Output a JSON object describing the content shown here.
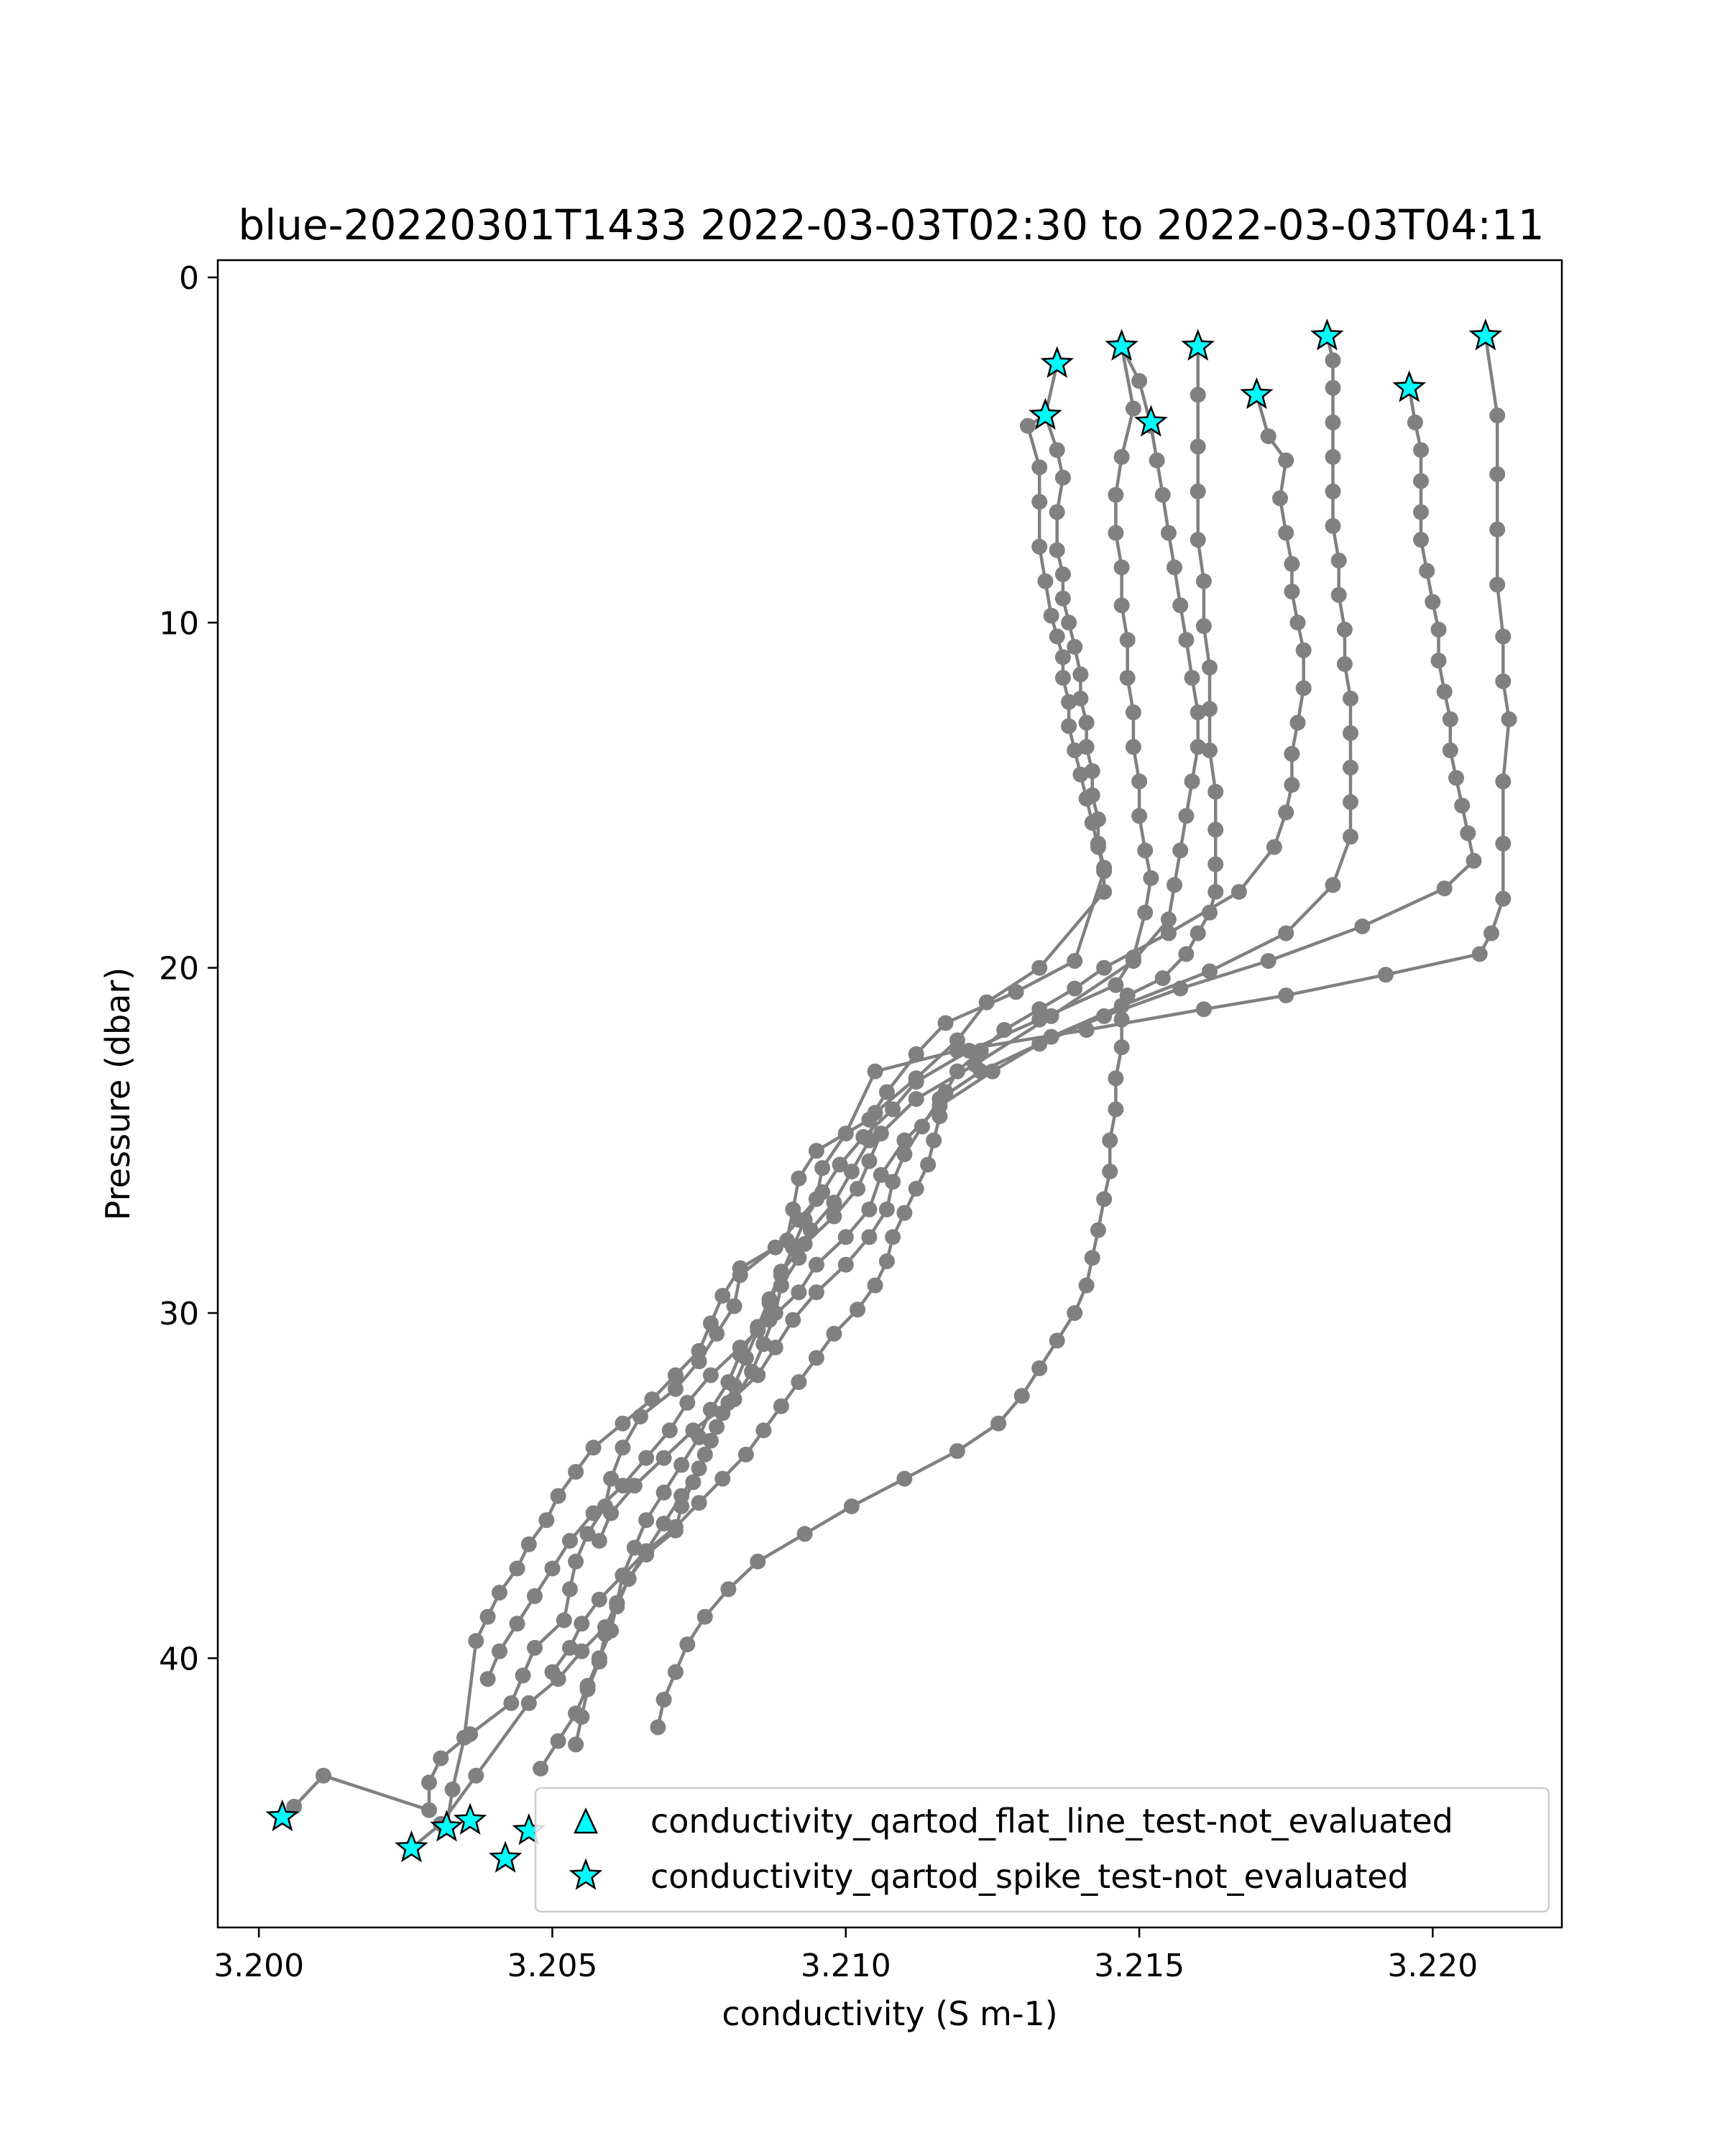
{
  "chart_data": {
    "type": "line",
    "title": "blue-20220301T1433 2022-03-03T02:30 to 2022-03-03T04:11",
    "xlabel": "conductivity (S m-1)",
    "ylabel": "Pressure (dbar)",
    "xlim": [
      3.1993,
      3.2222
    ],
    "ylim": [
      47.8,
      -0.5
    ],
    "y_inverted": true,
    "grid": false,
    "xticks": [
      3.2,
      3.205,
      3.21,
      3.215,
      3.22
    ],
    "xtick_labels": [
      "3.200",
      "3.205",
      "3.210",
      "3.215",
      "3.220"
    ],
    "yticks": [
      0,
      10,
      20,
      30,
      40
    ],
    "ytick_labels": [
      "0",
      "10",
      "20",
      "30",
      "40"
    ],
    "colors": {
      "line": "#808080",
      "marker": "#808080",
      "flag_fill": "#00ffff",
      "flag_edge": "#000000"
    },
    "legend": {
      "placement": "lower-right",
      "entries": [
        {
          "label": "conductivity_qartod_flat_line_test-not_evaluated",
          "marker": "triangle"
        },
        {
          "label": "conductivity_qartod_spike_test-not_evaluated",
          "marker": "star"
        }
      ]
    },
    "series": [
      {
        "x": [
          3.2136,
          3.2134,
          3.2136,
          3.2137,
          3.2136,
          3.2136,
          3.2137,
          3.2137,
          3.2138,
          3.2139,
          3.214,
          3.214,
          3.2141,
          3.2141,
          3.2142,
          3.2142,
          3.2143,
          3.2143,
          3.2144,
          3.2144,
          3.2133,
          3.2124,
          3.2119,
          3.2112,
          3.2105,
          3.2104,
          3.2101,
          3.2098,
          3.2094,
          3.2092,
          3.2089,
          3.2088,
          3.2086,
          3.2084,
          3.2081,
          3.2078,
          3.2076,
          3.2074,
          3.2072,
          3.2071,
          3.2066,
          3.2063,
          3.2061,
          3.2059,
          3.2055,
          3.2051,
          3.2046,
          3.2037,
          3.2031,
          3.2026
        ],
        "y": [
          2.5,
          4.0,
          5.0,
          5.8,
          6.8,
          7.9,
          8.6,
          9.3,
          10.0,
          10.7,
          11.5,
          12.2,
          12.9,
          13.6,
          14.3,
          15.0,
          15.7,
          16.4,
          17.1,
          17.8,
          20.0,
          21.0,
          22.1,
          23.2,
          24.2,
          25.0,
          25.9,
          26.8,
          27.6,
          28.4,
          29.2,
          30.0,
          30.9,
          31.7,
          32.5,
          33.3,
          34.1,
          34.9,
          35.6,
          36.3,
          37.0,
          37.7,
          38.4,
          39.1,
          39.8,
          40.6,
          41.3,
          43.4,
          44.8,
          45.5
        ]
      },
      {
        "x": [
          3.2134,
          3.2131,
          3.2133,
          3.2133,
          3.2133,
          3.2134,
          3.2135,
          3.2136,
          3.2137,
          3.2137,
          3.2138,
          3.2138,
          3.2139,
          3.214,
          3.2141,
          3.2142,
          3.2143,
          3.2144,
          3.2139,
          3.2129,
          3.2117,
          3.2112,
          3.2107,
          3.2104,
          3.2095,
          3.2092,
          3.2091,
          3.209,
          3.2082,
          3.2079,
          3.2077,
          3.2075,
          3.2071,
          3.2067,
          3.2062,
          3.2057,
          3.2054,
          3.2051,
          3.2049,
          3.2046,
          3.2044,
          3.2041,
          3.2039,
          3.2037,
          3.2035,
          3.2033,
          3.2032
        ],
        "y": [
          4.0,
          4.3,
          5.5,
          6.5,
          7.8,
          8.8,
          9.8,
          10.4,
          11.0,
          11.6,
          12.3,
          13.0,
          13.7,
          14.4,
          15.1,
          15.8,
          16.5,
          17.2,
          19.8,
          20.7,
          21.6,
          22.5,
          23.6,
          24.4,
          25.3,
          26.1,
          27.0,
          27.9,
          28.7,
          29.5,
          30.3,
          31.1,
          31.8,
          32.5,
          33.2,
          33.9,
          34.6,
          35.3,
          36.0,
          36.7,
          37.4,
          38.1,
          38.8,
          39.5,
          42.3,
          43.8,
          44.9
        ]
      },
      {
        "x": [
          3.2147,
          3.215,
          3.2152,
          3.2153,
          3.2154,
          3.2155,
          3.2156,
          3.2157,
          3.2158,
          3.2159,
          3.216,
          3.216,
          3.2159,
          3.2158,
          3.2157,
          3.2156,
          3.2155,
          3.2149,
          3.2135,
          3.2122,
          3.2112,
          3.2106,
          3.2104,
          3.2102,
          3.2098,
          3.2093,
          3.2089,
          3.2087,
          3.2085,
          3.2082,
          3.208,
          3.2077,
          3.2075,
          3.2072,
          3.2069,
          3.2066,
          3.2064,
          3.2062,
          3.2061,
          3.206,
          3.2058,
          3.2056,
          3.2054,
          3.2051,
          3.2048
        ],
        "y": [
          2.0,
          3.0,
          4.3,
          5.3,
          6.3,
          7.4,
          8.4,
          9.5,
          10.5,
          11.6,
          12.6,
          13.6,
          14.6,
          15.6,
          16.6,
          17.6,
          18.6,
          19.8,
          21.4,
          22.8,
          23.8,
          24.8,
          25.6,
          26.4,
          27.2,
          28.0,
          28.8,
          29.6,
          30.4,
          31.2,
          32.0,
          32.8,
          33.6,
          34.4,
          35.2,
          36.0,
          36.8,
          37.6,
          38.4,
          39.2,
          40.0,
          40.8,
          41.6,
          42.4,
          43.2
        ]
      },
      {
        "x": [
          3.2147,
          3.2149,
          3.2147,
          3.2146,
          3.2146,
          3.2147,
          3.2147,
          3.2148,
          3.2148,
          3.2149,
          3.2149,
          3.215,
          3.215,
          3.2151,
          3.2152,
          3.2151,
          3.2149,
          3.2146,
          3.2133,
          3.2121,
          3.2112,
          3.2108,
          3.2103,
          3.2099,
          3.2096,
          3.2093,
          3.2091,
          3.2089,
          3.2087,
          3.2085,
          3.2083,
          3.2081,
          3.2079,
          3.2077,
          3.2075,
          3.2072,
          3.2069,
          3.2066,
          3.2063,
          3.2061,
          3.2059,
          3.2058,
          3.2056,
          3.2055,
          3.2054
        ],
        "y": [
          2.0,
          3.8,
          5.2,
          6.3,
          7.4,
          8.4,
          9.5,
          10.5,
          11.6,
          12.6,
          13.6,
          14.6,
          15.6,
          16.6,
          17.4,
          18.4,
          19.7,
          20.5,
          21.5,
          22.4,
          23.3,
          24.1,
          24.9,
          25.7,
          26.5,
          27.3,
          28.1,
          28.9,
          29.7,
          30.5,
          31.3,
          32.1,
          32.9,
          33.7,
          34.5,
          35.3,
          36.1,
          36.9,
          37.7,
          38.5,
          39.3,
          40.1,
          40.9,
          41.7,
          42.5
        ]
      },
      {
        "x": [
          3.216,
          3.216,
          3.216,
          3.216,
          3.216,
          3.2161,
          3.2161,
          3.2162,
          3.2162,
          3.2162,
          3.2163,
          3.2163,
          3.2163,
          3.2163,
          3.2162,
          3.216,
          3.2158,
          3.2154,
          3.2148,
          3.2147,
          3.2147,
          3.2146,
          3.2146,
          3.2145,
          3.2145,
          3.2144,
          3.2143,
          3.2142,
          3.2141,
          3.2139,
          3.2136,
          3.2133,
          3.213,
          3.2126,
          3.2119,
          3.211,
          3.2101,
          3.2093,
          3.2085,
          3.208,
          3.2076,
          3.2073,
          3.2071,
          3.2069,
          3.2068
        ],
        "y": [
          2.0,
          3.4,
          4.9,
          6.2,
          7.6,
          8.8,
          10.1,
          11.3,
          12.5,
          13.7,
          14.9,
          16.0,
          17.0,
          17.8,
          18.4,
          19.0,
          19.6,
          20.3,
          20.8,
          21.5,
          22.3,
          23.2,
          24.1,
          25.0,
          25.9,
          26.7,
          27.6,
          28.4,
          29.2,
          30.0,
          30.8,
          31.6,
          32.4,
          33.2,
          34.0,
          34.8,
          35.6,
          36.4,
          37.2,
          38.0,
          38.8,
          39.6,
          40.4,
          41.2,
          42.0
        ]
      },
      {
        "x": [
          3.217,
          3.2172,
          3.2175,
          3.2174,
          3.2175,
          3.2176,
          3.2176,
          3.2177,
          3.2178,
          3.2178,
          3.2177,
          3.2176,
          3.2176,
          3.2175,
          3.2173,
          3.2167,
          3.2155,
          3.2144,
          3.2139,
          3.2133,
          3.2127,
          3.2123,
          3.2119,
          3.2117,
          3.2116,
          3.2115,
          3.2114,
          3.2112,
          3.211,
          3.2108,
          3.2107,
          3.2105,
          3.2102,
          3.2098,
          3.2095,
          3.2092,
          3.2089,
          3.2086,
          3.2083,
          3.2079,
          3.2075,
          3.2071,
          3.2066,
          3.2062,
          3.2058,
          3.2055,
          3.2053,
          3.205
        ],
        "y": [
          3.4,
          4.6,
          5.3,
          6.4,
          7.4,
          8.3,
          9.1,
          10.0,
          10.8,
          11.9,
          12.9,
          13.8,
          14.7,
          15.5,
          16.5,
          17.8,
          19.0,
          20.0,
          20.6,
          21.2,
          21.8,
          22.4,
          23.0,
          23.6,
          24.3,
          25.0,
          25.7,
          26.4,
          27.1,
          27.8,
          28.5,
          29.2,
          29.9,
          30.6,
          31.3,
          32.0,
          32.7,
          33.4,
          34.1,
          34.8,
          35.5,
          36.2,
          36.9,
          37.6,
          38.3,
          39.0,
          39.7,
          40.4
        ]
      },
      {
        "x": [
          3.2182,
          3.2183,
          3.2183,
          3.2183,
          3.2183,
          3.2183,
          3.2183,
          3.2184,
          3.2184,
          3.2185,
          3.2185,
          3.2186,
          3.2186,
          3.2186,
          3.2186,
          3.2186,
          3.2183,
          3.2175,
          3.2162,
          3.2147,
          3.2135,
          3.2125,
          3.2116,
          3.211,
          3.2106,
          3.2104,
          3.21,
          3.2095,
          3.2092,
          3.2087,
          3.2082,
          3.2077,
          3.2073,
          3.207,
          3.2066,
          3.2062,
          3.2057,
          3.2053,
          3.205,
          3.2047,
          3.2044,
          3.2041,
          3.2039
        ],
        "y": [
          1.7,
          2.4,
          3.2,
          4.2,
          5.2,
          6.2,
          7.2,
          8.2,
          9.2,
          10.2,
          11.2,
          12.2,
          13.2,
          14.2,
          15.2,
          16.2,
          17.6,
          19.0,
          20.1,
          21.1,
          22.0,
          23.0,
          24.0,
          25.0,
          26.0,
          27.0,
          27.8,
          28.6,
          29.4,
          30.2,
          31.0,
          31.8,
          32.6,
          33.4,
          34.2,
          35.0,
          35.8,
          36.6,
          37.4,
          38.2,
          39.0,
          39.8,
          40.6
        ]
      },
      {
        "x": [
          3.2196,
          3.2197,
          3.2198,
          3.2198,
          3.2198,
          3.2198,
          3.2199,
          3.22,
          3.2201,
          3.2201,
          3.2202,
          3.2203,
          3.2203,
          3.2204,
          3.2205,
          3.2206,
          3.2207,
          3.2202,
          3.2188,
          3.2172,
          3.2157,
          3.2144,
          3.2133,
          3.2123,
          3.2116,
          3.2113,
          3.211,
          3.2108,
          3.2107,
          3.2104,
          3.21,
          3.2095,
          3.2091,
          3.2088,
          3.2085,
          3.208,
          3.2074,
          3.2069,
          3.2064,
          3.206,
          3.2058
        ],
        "y": [
          3.2,
          4.2,
          5.0,
          5.9,
          6.8,
          7.6,
          8.5,
          9.4,
          10.2,
          11.1,
          12.0,
          12.8,
          13.7,
          14.5,
          15.3,
          16.1,
          16.9,
          17.7,
          18.8,
          19.8,
          20.6,
          21.4,
          22.2,
          23.0,
          23.8,
          24.6,
          25.4,
          26.2,
          27.0,
          27.8,
          28.6,
          29.4,
          30.2,
          31.0,
          31.8,
          32.6,
          33.4,
          34.2,
          35.0,
          35.8,
          36.6
        ]
      },
      {
        "x": [
          3.2209,
          3.2211,
          3.2211,
          3.2211,
          3.2211,
          3.2212,
          3.2212,
          3.2213,
          3.2212,
          3.2212,
          3.2212,
          3.221,
          3.2208,
          3.2192,
          3.2175,
          3.2161,
          3.2141,
          3.2119,
          3.2105,
          3.21,
          3.2096,
          3.2095,
          3.2092,
          3.2088,
          3.2082,
          3.2081,
          3.2078,
          3.2075,
          3.2071,
          3.2065,
          3.2062,
          3.206,
          3.2059,
          3.2056,
          3.2054,
          3.2053,
          3.2052,
          3.2047,
          3.2045,
          3.2043,
          3.2036,
          3.2031,
          3.2029,
          3.2029,
          3.2011,
          3.2006,
          3.2004
        ],
        "y": [
          1.7,
          4.0,
          5.7,
          7.3,
          8.9,
          10.4,
          11.7,
          12.8,
          14.6,
          16.4,
          18.0,
          19.0,
          19.6,
          20.2,
          20.8,
          21.2,
          21.8,
          22.4,
          23.0,
          24.8,
          25.8,
          26.7,
          27.3,
          28.1,
          28.9,
          29.8,
          30.6,
          31.4,
          32.2,
          33.0,
          33.9,
          34.8,
          35.6,
          36.4,
          37.2,
          38.0,
          38.9,
          39.7,
          40.5,
          41.3,
          42.2,
          42.9,
          43.6,
          44.4,
          43.4,
          44.3,
          44.6
        ]
      }
    ],
    "flagged_points": {
      "legend_label": "conductivity_qartod_spike_test-not_evaluated",
      "marker": "star",
      "x": [
        3.2136,
        3.2134,
        3.2147,
        3.2152,
        3.216,
        3.217,
        3.2182,
        3.2196,
        3.2209,
        3.2004,
        3.2026,
        3.2032,
        3.2036,
        3.2042,
        3.2046
      ],
      "y": [
        2.5,
        4.0,
        2.0,
        4.2,
        2.0,
        3.4,
        1.7,
        3.2,
        1.7,
        44.6,
        45.5,
        44.9,
        44.7,
        45.8,
        45.0
      ]
    }
  }
}
